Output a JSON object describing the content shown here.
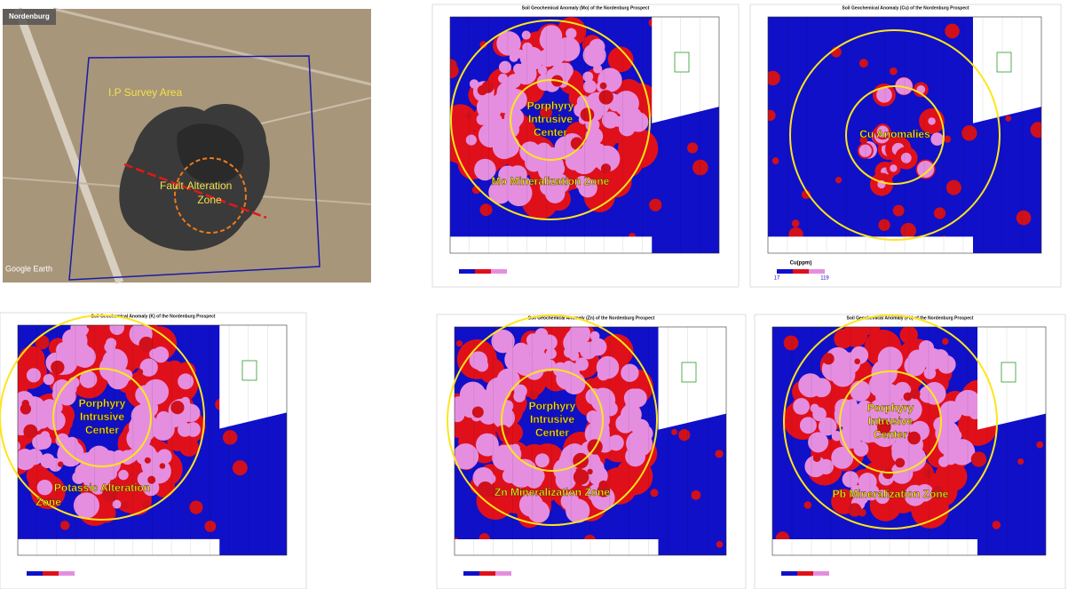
{
  "satellite": {
    "place": "Nordenburg",
    "survey_area": "I.P Survey Area",
    "fault": "Fault",
    "alteration": [
      "Alteration",
      "Zone"
    ],
    "credit": "Google Earth"
  },
  "maps": [
    {
      "title": "Soil Geochemical Anomaly (Mo) of the Nordenburg Prospect",
      "center_label": [
        "Porphyry",
        "Intrusive",
        "Center"
      ],
      "zone_label": [
        "Mo Mineralization Zone"
      ]
    },
    {
      "title": "Soil Geochemical Anomaly (Cu) of the Nordenburg Prospect",
      "center_label": [
        "Cu Anomalies"
      ],
      "legend": {
        "title": "Cu(ppm)",
        "labels": [
          "17",
          "119"
        ]
      }
    },
    {
      "title": "Soil Geochemical Anomaly (K) of the Nordenburg Prospect",
      "center_label": [
        "Porphyry",
        "Intrusive",
        "Center"
      ],
      "zone_label": [
        "Potassic Alteration",
        "Zone"
      ]
    },
    {
      "title": "Soil Geochemical Anomaly (Zn) of the Nordenburg Prospect",
      "center_label": [
        "Porphyry",
        "Intrusive",
        "Center"
      ],
      "zone_label": [
        "Zn Mineralization Zone"
      ]
    },
    {
      "title": "Soil Geochemical Anomaly (Pb) of the Nordenburg Prospect",
      "center_label": [
        "Porphyry",
        "Intrusive",
        "Center"
      ],
      "zone_label": [
        "Pb Mineralization Zone"
      ]
    }
  ]
}
